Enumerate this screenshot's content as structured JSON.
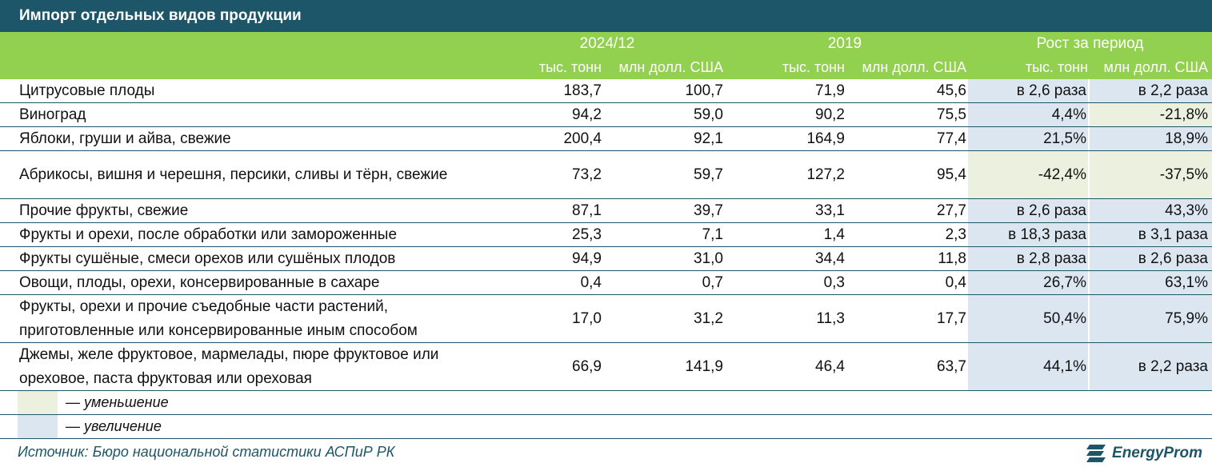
{
  "title": "Импорт отдельных видов продукции",
  "header": {
    "groups": [
      "2024/12",
      "2019",
      "Рост за период"
    ],
    "units": [
      "тыс. тонн",
      "млн долл. США",
      "тыс. тонн",
      "млн долл. США",
      "тыс. тонн",
      "млн долл. США"
    ]
  },
  "colors": {
    "title_bg": "#1d5668",
    "header_bg": "#92d050",
    "increase": "#dce6f1",
    "decrease": "#ebf1de"
  },
  "rows": [
    {
      "name": "Цитрусовые плоды",
      "v": [
        "183,7",
        "100,7",
        "71,9",
        "45,6"
      ],
      "g": [
        "в 2,6 раза",
        "в 2,2 раза"
      ],
      "gc": [
        "up",
        "up"
      ]
    },
    {
      "name": "Виноград",
      "v": [
        "94,2",
        "59,0",
        "90,2",
        "75,5"
      ],
      "g": [
        "4,4%",
        "-21,8%"
      ],
      "gc": [
        "up",
        "down"
      ]
    },
    {
      "name": "Яблоки, груши и айва, свежие",
      "v": [
        "200,4",
        "92,1",
        "164,9",
        "77,4"
      ],
      "g": [
        "21,5%",
        "18,9%"
      ],
      "gc": [
        "up",
        "up"
      ]
    },
    {
      "name": "Абрикосы, вишня и черешня, персики, сливы и тёрн, свежие",
      "v": [
        "73,2",
        "59,7",
        "127,2",
        "95,4"
      ],
      "g": [
        "-42,4%",
        "-37,5%"
      ],
      "gc": [
        "down",
        "down"
      ]
    },
    {
      "name": "Прочие фрукты, свежие",
      "v": [
        "87,1",
        "39,7",
        "33,1",
        "27,7"
      ],
      "g": [
        "в 2,6 раза",
        "43,3%"
      ],
      "gc": [
        "up",
        "up"
      ]
    },
    {
      "name": "Фрукты и орехи, после обработки или замороженные",
      "v": [
        "25,3",
        "7,1",
        "1,4",
        "2,3"
      ],
      "g": [
        "в 18,3 раза",
        "в 3,1 раза"
      ],
      "gc": [
        "up",
        "up"
      ]
    },
    {
      "name": "Фрукты сушёные, смеси орехов или сушёных плодов",
      "v": [
        "94,9",
        "31,0",
        "34,4",
        "11,8"
      ],
      "g": [
        "в 2,8 раза",
        "в 2,6 раза"
      ],
      "gc": [
        "up",
        "up"
      ]
    },
    {
      "name": "Овощи, плоды, орехи, консервированные в сахаре",
      "v": [
        "0,4",
        "0,7",
        "0,3",
        "0,4"
      ],
      "g": [
        "26,7%",
        "63,1%"
      ],
      "gc": [
        "up",
        "up"
      ]
    },
    {
      "name": "Фрукты, орехи и прочие съедобные части растений, приготовленные или консервированные иным способом",
      "v": [
        "17,0",
        "31,2",
        "11,3",
        "17,7"
      ],
      "g": [
        "50,4%",
        "75,9%"
      ],
      "gc": [
        "up",
        "up"
      ]
    },
    {
      "name": "Джемы, желе фруктовое, мармелады, пюре фруктовое или ореховое, паста фруктовая или ореховая",
      "v": [
        "66,9",
        "141,9",
        "46,4",
        "63,7"
      ],
      "g": [
        "44,1%",
        "в 2,2 раза"
      ],
      "gc": [
        "up",
        "up"
      ]
    }
  ],
  "legend": {
    "decrease": "— уменьшение",
    "increase": "— увеличение"
  },
  "source": "Источник: Бюро национальной статистики АСПиР РК",
  "logo": {
    "text": "EnergyProm",
    "icon": "energyprom-logo-icon"
  }
}
